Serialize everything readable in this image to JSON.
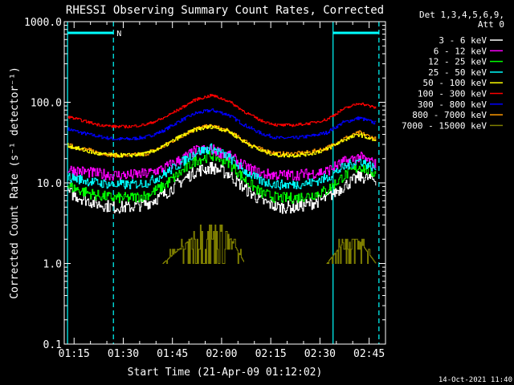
{
  "chart_data": {
    "type": "line",
    "title": "RHESSI Observing Summary Count Rates, Corrected",
    "xlabel": "Start Time (21-Apr-09 01:12:02)",
    "ylabel": "Corrected Count Rate (s⁻¹ detector⁻¹)",
    "yscale": "log",
    "ylim": [
      0.1,
      1000
    ],
    "yticks": [
      "0.1",
      "1.0",
      "10.0",
      "100.0",
      "1000.0"
    ],
    "xlim": [
      "01:12",
      "02:50"
    ],
    "xticks": [
      "01:15",
      "01:30",
      "01:45",
      "02:00",
      "02:15",
      "02:30",
      "02:45"
    ],
    "grid": false,
    "legend_position": "right",
    "legend_header": [
      "Det 1,3,4,5,6,9,",
      "Att 0"
    ],
    "x_minutes": [
      0,
      5,
      10,
      15,
      20,
      25,
      30,
      35,
      40,
      45,
      50,
      55,
      60,
      65,
      70,
      75,
      80,
      85,
      90,
      95
    ],
    "series": [
      {
        "name": "3 - 6 keV",
        "color": "#ffffff",
        "values": [
          8,
          6.5,
          5.5,
          5,
          5,
          5.5,
          7,
          10,
          14,
          15.5,
          13,
          8.5,
          6,
          5,
          5,
          5.5,
          6.5,
          9,
          12,
          11
        ]
      },
      {
        "name": "6 - 12 keV",
        "color": "#ff00ff",
        "values": [
          15,
          14,
          13,
          12.5,
          12.5,
          13,
          15,
          19,
          25,
          26,
          22,
          16,
          13,
          12.5,
          12.5,
          13,
          14,
          18,
          21,
          17
        ]
      },
      {
        "name": "12 - 25 keV",
        "color": "#00ff00",
        "values": [
          9.5,
          8,
          7,
          6.5,
          6.5,
          7,
          9,
          13,
          19,
          22,
          18,
          11,
          7.5,
          6.5,
          6.5,
          7,
          8,
          12,
          16,
          13
        ]
      },
      {
        "name": "25 - 50 keV",
        "color": "#00ffff",
        "values": [
          12,
          11,
          10,
          9.5,
          9.5,
          10,
          12.5,
          17,
          24,
          27,
          21,
          14,
          10.5,
          9.5,
          9.5,
          10,
          11.5,
          15.5,
          19,
          15
        ]
      },
      {
        "name": "50 - 100 keV",
        "color": "#ffff00",
        "values": [
          30,
          26,
          23,
          22,
          22,
          23,
          28,
          37,
          46,
          50,
          44,
          32,
          25,
          22,
          22,
          23,
          26,
          34,
          40,
          33
        ]
      },
      {
        "name": "100 - 300 keV",
        "color": "#ff0000",
        "values": [
          68,
          60,
          53,
          50,
          50,
          53,
          63,
          82,
          108,
          122,
          104,
          76,
          59,
          52,
          52,
          55,
          61,
          82,
          98,
          85
        ]
      },
      {
        "name": "300 - 800 keV",
        "color": "#0000ff",
        "values": [
          48,
          42,
          38,
          35,
          35,
          37,
          44,
          58,
          73,
          80,
          70,
          52,
          41,
          36,
          36,
          38,
          42,
          56,
          64,
          55
        ]
      },
      {
        "name": "800 - 7000 keV",
        "color": "#ff9900",
        "values": [
          30,
          27,
          24,
          22,
          22,
          23,
          28,
          37,
          47,
          51,
          44,
          33,
          26,
          23,
          23,
          24,
          27,
          35,
          42,
          35
        ]
      },
      {
        "name": "7000 - 15000 keV",
        "color": "#808000",
        "values": [
          null,
          null,
          null,
          null,
          null,
          null,
          1.0,
          1.5,
          2.3,
          2.8,
          2.3,
          1.0,
          null,
          null,
          null,
          null,
          1.0,
          1.8,
          1.9,
          1.0
        ]
      }
    ],
    "annotations": [
      {
        "type": "night_start",
        "time": "01:13"
      },
      {
        "type": "night_end",
        "time": "01:27"
      },
      {
        "type": "night_start",
        "time": "02:34"
      },
      {
        "type": "night_end",
        "time": "02:48"
      }
    ],
    "night_label": "N"
  },
  "footer": {
    "timestamp": "14-Oct-2021 11:40"
  },
  "colors": {
    "background": "#000000",
    "axes": "#ffffff",
    "night_marker": "#00ffff"
  }
}
